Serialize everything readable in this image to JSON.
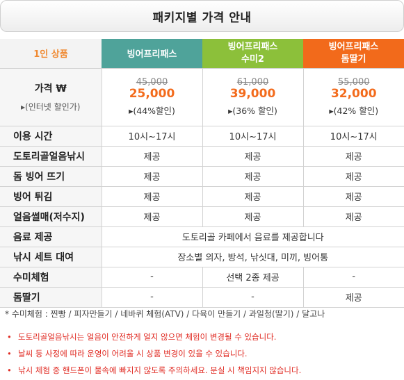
{
  "title": "패키지별 가격 안내",
  "table": {
    "corner": "1인 상품",
    "packages": [
      {
        "name_line1": "빙어프리패스",
        "name_line2": ""
      },
      {
        "name_line1": "빙어프리패스",
        "name_line2": "수미2"
      },
      {
        "name_line1": "빙어프리패스",
        "name_line2": "돔딸기"
      }
    ],
    "price_label": "가격 ₩",
    "price_sub": "▸(인터넷 할인가)",
    "prices": [
      {
        "original": "45,000",
        "sale": "25,000",
        "discount": "▸(44%할인)"
      },
      {
        "original": "61,000",
        "sale": "39,000",
        "discount": "▸(36% 할인)"
      },
      {
        "original": "55,000",
        "sale": "32,000",
        "discount": "▸(42% 할인)"
      }
    ],
    "rows": [
      {
        "label": "이용 시간",
        "values": [
          "10시~17시",
          "10시~17시",
          "10시~17시"
        ]
      },
      {
        "label": "도토리골얼음낚시",
        "values": [
          "제공",
          "제공",
          "제공"
        ]
      },
      {
        "label": "돔 빙어 뜨기",
        "values": [
          "제공",
          "제공",
          "제공"
        ]
      },
      {
        "label": "빙어 튀김",
        "values": [
          "제공",
          "제공",
          "제공"
        ]
      },
      {
        "label": "얼음썰매(저수지)",
        "values": [
          "제공",
          "제공",
          "제공"
        ]
      }
    ],
    "beverage": {
      "label": "음료 제공",
      "value": "도토리골 카페에서 음료를 제공합니다"
    },
    "fishing_set": {
      "label": "낚시 세트 대여",
      "value": "장소별 의자, 방석, 낚싯대, 미끼, 빙어통"
    },
    "sumi": {
      "label": "수미체험",
      "values": [
        "-",
        "선택 2종 제공",
        "-"
      ]
    },
    "domddalgi": {
      "label": "돔딸기",
      "values": [
        "-",
        "-",
        "제공"
      ]
    }
  },
  "note": "* 수미체험 :  찐빵 /  피자만들기 / 네바퀴 체험(ATV) / 다육이 만들기 / 과일청(딸기) / 달고나",
  "warnings": [
    "도토리골얼음낚시는 얼음이 안전하게 얼지 않으면 체험이 변경될 수 있습니다.",
    "날씨 등 사정에 따라 운영이 어려울 시 상품 변경이 있을 수 있습니다.",
    "낚시 체험 중 핸드폰이 물속에 빠지지 않도록 주의하세요.   분실 시 책임지지 않습니다."
  ],
  "warning_bullet": "•",
  "colors": {
    "teal": "#4fa39a",
    "green": "#8cc03a",
    "orange": "#f26a1b",
    "sale_price": "#f36b1c",
    "warning": "#e02a22"
  }
}
